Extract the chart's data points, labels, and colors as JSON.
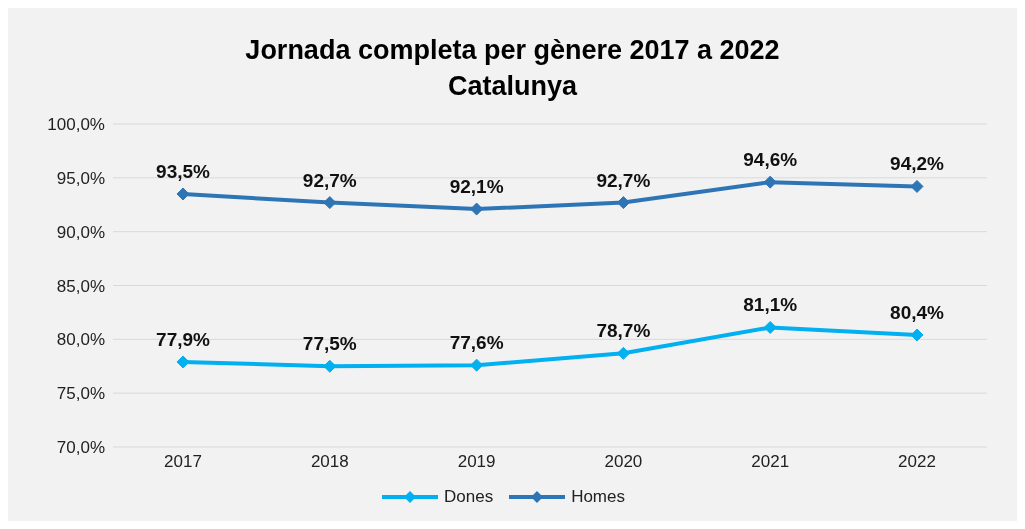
{
  "chart_data": {
    "type": "line",
    "title": "Jornada completa per gènere 2017 a 2022",
    "subtitle": "Catalunya",
    "categories": [
      "2017",
      "2018",
      "2019",
      "2020",
      "2021",
      "2022"
    ],
    "series": [
      {
        "name": "Dones",
        "color": "#00b0f0",
        "values": [
          77.9,
          77.5,
          77.6,
          78.7,
          81.1,
          80.4
        ],
        "value_labels": [
          "77,9%",
          "77,5%",
          "77,6%",
          "78,7%",
          "81,1%",
          "80,4%"
        ]
      },
      {
        "name": "Homes",
        "color": "#2e75b6",
        "values": [
          93.5,
          92.7,
          92.1,
          92.7,
          94.6,
          94.2
        ],
        "value_labels": [
          "93,5%",
          "92,7%",
          "92,1%",
          "92,7%",
          "94,6%",
          "94,2%"
        ]
      }
    ],
    "ylim": [
      70,
      100
    ],
    "yticks": [
      {
        "value": 70,
        "label": "70,0%"
      },
      {
        "value": 75,
        "label": "75,0%"
      },
      {
        "value": 80,
        "label": "80,0%"
      },
      {
        "value": 85,
        "label": "85,0%"
      },
      {
        "value": 90,
        "label": "90,0%"
      },
      {
        "value": 95,
        "label": "95,0%"
      },
      {
        "value": 100,
        "label": "100,0%"
      }
    ],
    "grid": "y",
    "legend": "bottom",
    "marker": "diamond",
    "line_style": "solid"
  }
}
